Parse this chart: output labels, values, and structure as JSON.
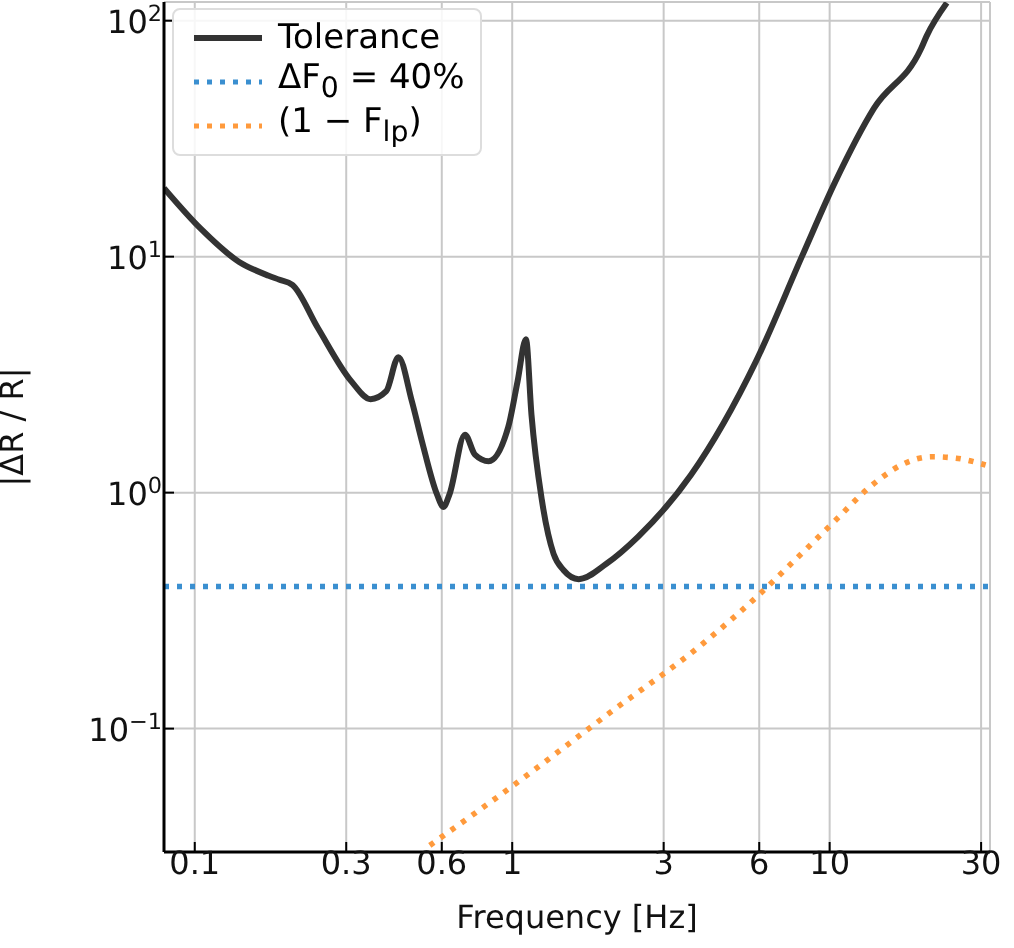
{
  "chart_data": {
    "type": "line",
    "xlabel": "Frequency [Hz]",
    "ylabel": "|ΔR / R|",
    "log": "xy",
    "grid": true,
    "legend": "top left",
    "xlim": [
      0.08,
      32
    ],
    "xticks": [
      0.1,
      0.3,
      0.6,
      1,
      3,
      6,
      10,
      30
    ],
    "ylim": [
      0.03,
      120
    ],
    "yticks": [
      {
        "value": 0.1,
        "label": "10$^{−1}$"
      },
      {
        "value": 1,
        "label": "10$^{0}$"
      },
      {
        "value": 10,
        "label": "10$^{1}$"
      },
      {
        "value": 100,
        "label": "10$^{2}$"
      }
    ],
    "series": [
      {
        "name": "Tolerance",
        "color": "#333333",
        "line_style": "solid",
        "x": [
          0.08,
          0.104,
          0.138,
          0.171,
          0.184,
          0.203,
          0.244,
          0.311,
          0.358,
          0.401,
          0.438,
          0.483,
          0.519,
          0.58,
          0.607,
          0.634,
          0.71,
          0.763,
          0.843,
          0.972,
          1.04,
          1.105,
          1.15,
          1.24,
          1.35,
          1.45,
          1.62,
          1.98,
          2.49,
          3.66,
          5.86,
          8.2,
          10.4,
          13.8,
          19.4,
          20.2,
          23.4
        ],
        "values": [
          19.5,
          13.2,
          9.5,
          8.3,
          8.0,
          7.6,
          5.0,
          2.97,
          2.49,
          2.69,
          3.75,
          2.44,
          1.66,
          0.98,
          0.87,
          0.98,
          1.76,
          1.45,
          1.36,
          1.9,
          2.97,
          4.47,
          2.14,
          0.93,
          0.55,
          0.47,
          0.43,
          0.5,
          0.65,
          1.19,
          3.6,
          10.1,
          20.7,
          42.6,
          76,
          86,
          119
        ]
      },
      {
        "name": "ΔF$_{0}$ = 40%",
        "color": "#3a8fd0",
        "line_style": "dotted",
        "x": [
          0.08,
          32
        ],
        "values": [
          0.4,
          0.4
        ]
      },
      {
        "name": "(1 − F$_{lp}$)",
        "color": "#ff9a3c",
        "line_style": "dotted",
        "x": [
          0.55,
          1,
          2,
          4,
          6,
          7.45,
          10.4,
          13.2,
          14.6,
          17,
          21,
          25,
          31
        ],
        "values": [
          0.032,
          0.057,
          0.115,
          0.23,
          0.37,
          0.49,
          0.76,
          1.04,
          1.16,
          1.32,
          1.42,
          1.4,
          1.31
        ]
      }
    ]
  }
}
